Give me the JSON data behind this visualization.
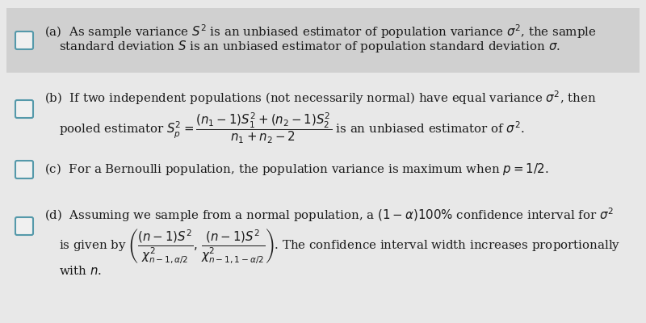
{
  "bg_color": "#e8e8e8",
  "white": "#f5f5f5",
  "panel_a_bg": "#d0d0d0",
  "dark": "#1a1a1a",
  "checkbox_fill": "#f0f0f0",
  "checkbox_border": "#5599aa",
  "font_size": 10.8,
  "sections": {
    "a_line1": "(a)  As sample variance $S^2$ is an unbiased estimator of population variance $\\sigma^2$, the sample",
    "a_line2": "standard deviation $S$ is an unbiased estimator of population standard deviation $\\sigma$.",
    "b_line1": "(b)  If two independent populations (not necessarily normal) have equal variance $\\sigma^2$, then",
    "b_line2": "pooled estimator $S_p^2 = \\dfrac{(n_1-1)S_1^2+(n_2-1)S_2^2}{n_1+n_2-2}$ is an unbiased estimator of $\\sigma^2$.",
    "c_line1": "(c)  For a Bernoulli population, the population variance is maximum when $p = 1/2$.",
    "d_line1": "(d)  Assuming we sample from a normal population, a $(1-\\alpha)100\\%$ confidence interval for $\\sigma^2$",
    "d_line2": "is given by $\\left(\\dfrac{(n-1)S^2}{\\chi^2_{n-1,\\alpha/2}},\\, \\dfrac{(n-1)S^2}{\\chi^2_{n-1,1-\\alpha/2}}\\right)$. The confidence interval width increases proportionally",
    "d_line3": "with $n$."
  }
}
